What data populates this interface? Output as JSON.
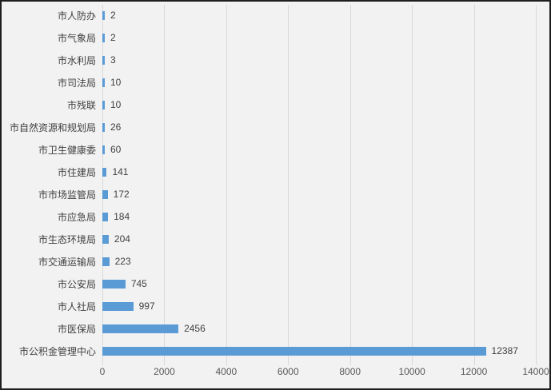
{
  "chart_data": {
    "type": "bar",
    "orientation": "horizontal",
    "title": "",
    "xlabel": "",
    "ylabel": "",
    "categories": [
      "市人防办",
      "市气象局",
      "市水利局",
      "市司法局",
      "市残联",
      "市自然资源和规划局",
      "市卫生健康委",
      "市住建局",
      "市市场监管局",
      "市应急局",
      "市生态环境局",
      "市交通运输局",
      "市公安局",
      "市人社局",
      "市医保局",
      "市公积金管理中心"
    ],
    "values": [
      2,
      2,
      3,
      10,
      10,
      26,
      60,
      141,
      172,
      184,
      204,
      223,
      745,
      997,
      2456,
      12387
    ],
    "data_labels": [
      "2",
      "2",
      "3",
      "10",
      "10",
      "26",
      "60",
      "141",
      "172",
      "184",
      "204",
      "223",
      "745",
      "997",
      "2456",
      "12387"
    ],
    "x_ticks": [
      0,
      2000,
      4000,
      6000,
      8000,
      10000,
      12000,
      14000
    ],
    "x_tick_labels": [
      "0",
      "2000",
      "4000",
      "6000",
      "8000",
      "10000",
      "12000",
      "14000"
    ],
    "xlim": [
      0,
      14000
    ],
    "grid": true,
    "legend": "none",
    "colors": {
      "bar": "#5b9bd5",
      "gridline": "#d9d9d9",
      "background": "#f2f2f2",
      "frame_border": "#1e1e1e",
      "label_text": "#404040",
      "tick_text": "#595959"
    }
  }
}
